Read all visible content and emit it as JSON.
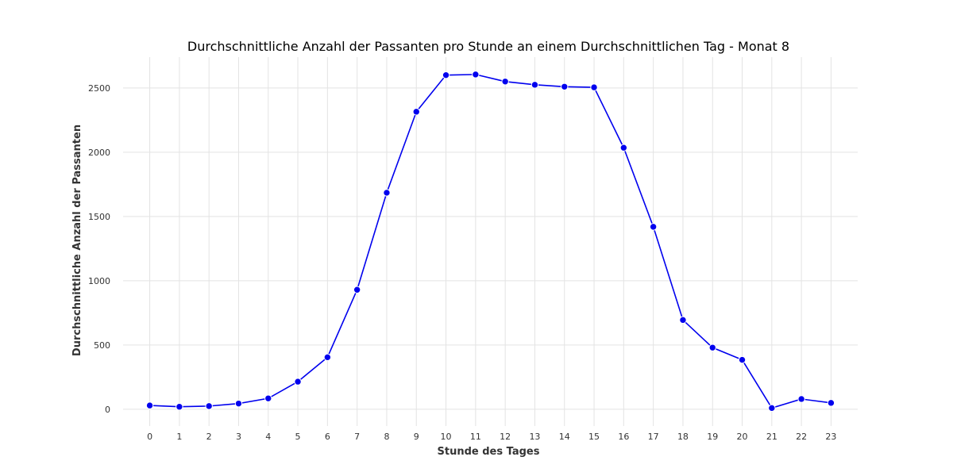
{
  "chart_data": {
    "type": "line",
    "title": "Durchschnittliche Anzahl der Passanten pro Stunde an einem Durchschnittlichen Tag - Monat 8",
    "xlabel": "Stunde des Tages",
    "ylabel": "Durchschnittliche Anzahl der Passanten",
    "x": [
      0,
      1,
      2,
      3,
      4,
      5,
      6,
      7,
      8,
      9,
      10,
      11,
      12,
      13,
      14,
      15,
      16,
      17,
      18,
      19,
      20,
      21,
      22,
      23
    ],
    "x_tick_labels": [
      "0",
      "1",
      "2",
      "3",
      "4",
      "5",
      "6",
      "7",
      "8",
      "9",
      "10",
      "11",
      "12",
      "13",
      "14",
      "15",
      "16",
      "17",
      "18",
      "19",
      "20",
      "21",
      "22",
      "23"
    ],
    "y_ticks": [
      0,
      500,
      1000,
      1500,
      2000,
      2500
    ],
    "y_tick_labels": [
      "0",
      "500",
      "1000",
      "1500",
      "2000",
      "2500"
    ],
    "ylim": [
      -130,
      2740
    ],
    "xlim": [
      -0.9,
      23.9
    ],
    "grid": true,
    "series": [
      {
        "values": [
          30,
          20,
          25,
          45,
          85,
          215,
          405,
          930,
          1685,
          2315,
          2600,
          2605,
          2550,
          2525,
          2510,
          2505,
          2035,
          1420,
          695,
          480,
          385,
          10,
          80,
          50
        ],
        "color": "#0000ee"
      }
    ]
  }
}
